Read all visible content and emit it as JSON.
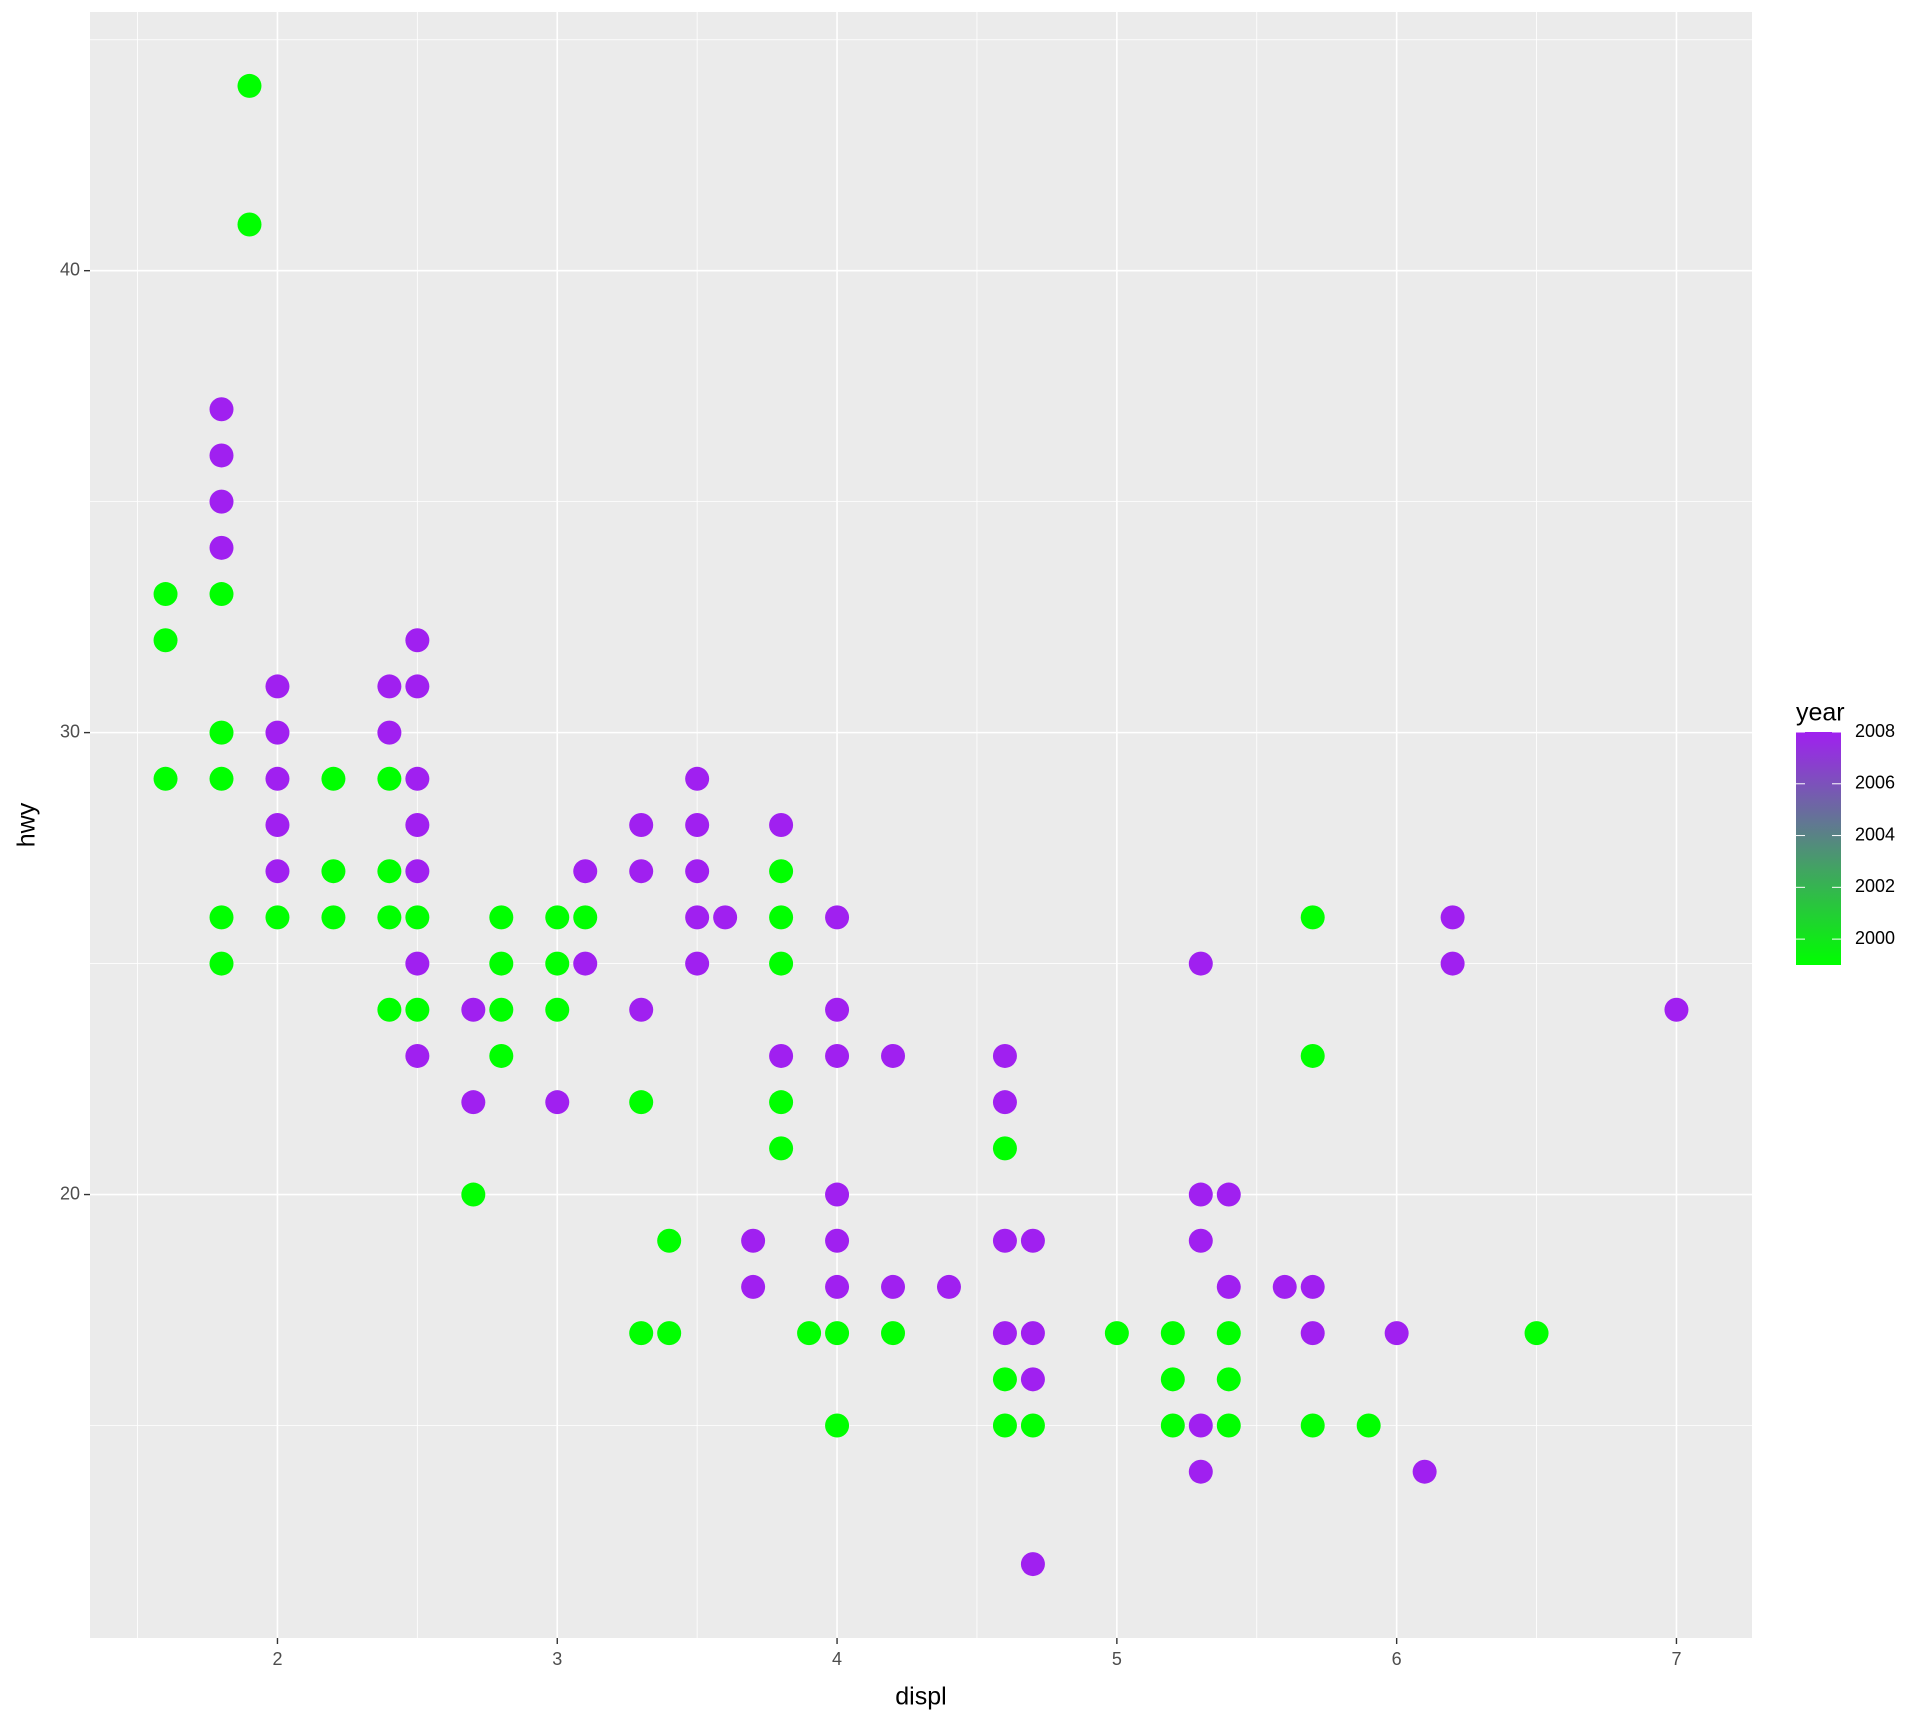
{
  "chart_data": {
    "type": "scatter",
    "x_label": "displ",
    "y_label": "hwy",
    "xlim": [
      1.33,
      7.27
    ],
    "ylim": [
      10.4,
      45.6
    ],
    "xticks": [
      2,
      3,
      4,
      5,
      6,
      7
    ],
    "yticks": [
      20,
      30,
      40
    ],
    "xminor": [
      1.5,
      2.5,
      3.5,
      4.5,
      5.5,
      6.5
    ],
    "yminor": [
      15,
      25,
      35,
      45
    ],
    "grid": true,
    "colorbar": {
      "title": "year",
      "limits": [
        1999,
        2008
      ],
      "ticks": [
        2000,
        2002,
        2004,
        2006,
        2008
      ],
      "low": "#00ff00",
      "high": "#a020f0"
    },
    "x": [
      1.9,
      1.9,
      1.6,
      1.6,
      1.6,
      1.8,
      1.8,
      1.8,
      1.8,
      1.8,
      2.0,
      2.2,
      2.2,
      2.2,
      2.4,
      2.4,
      2.4,
      2.4,
      2.5,
      2.5,
      2.7,
      2.8,
      2.8,
      2.8,
      2.8,
      3.0,
      3.0,
      3.0,
      3.1,
      3.3,
      3.3,
      3.4,
      3.4,
      3.8,
      3.8,
      3.8,
      3.8,
      3.8,
      3.9,
      4.0,
      4.0,
      4.2,
      4.6,
      4.6,
      4.6,
      4.7,
      5.0,
      5.2,
      5.2,
      5.2,
      5.4,
      5.4,
      5.4,
      5.7,
      5.7,
      5.7,
      5.9,
      6.5,
      1.8,
      1.8,
      1.8,
      1.8,
      2.0,
      2.0,
      2.0,
      2.0,
      2.0,
      2.4,
      2.4,
      2.5,
      2.5,
      2.5,
      2.5,
      2.5,
      2.5,
      2.5,
      2.7,
      2.7,
      3.0,
      3.1,
      3.1,
      3.3,
      3.3,
      3.3,
      3.5,
      3.5,
      3.5,
      3.5,
      3.5,
      3.6,
      3.7,
      3.7,
      3.8,
      3.8,
      4.0,
      4.0,
      4.0,
      4.0,
      4.0,
      4.0,
      4.2,
      4.2,
      4.4,
      4.6,
      4.6,
      4.6,
      4.6,
      4.7,
      4.7,
      4.7,
      4.7,
      5.3,
      5.3,
      5.3,
      5.3,
      5.3,
      5.4,
      5.4,
      5.6,
      5.7,
      5.7,
      6.0,
      6.1,
      6.2,
      6.2,
      7.0
    ],
    "y": [
      44,
      41,
      33,
      32,
      29,
      33,
      30,
      29,
      26,
      25,
      26,
      29,
      27,
      26,
      29,
      27,
      26,
      24,
      26,
      24,
      20,
      26,
      25,
      24,
      23,
      26,
      25,
      24,
      26,
      22,
      17,
      19,
      17,
      27,
      26,
      25,
      22,
      21,
      17,
      17,
      15,
      17,
      21,
      16,
      15,
      15,
      17,
      17,
      16,
      15,
      17,
      16,
      15,
      26,
      23,
      15,
      15,
      17,
      37,
      36,
      35,
      34,
      31,
      30,
      29,
      28,
      27,
      31,
      30,
      32,
      31,
      29,
      28,
      27,
      25,
      23,
      24,
      22,
      22,
      27,
      25,
      28,
      27,
      24,
      29,
      28,
      27,
      26,
      25,
      26,
      19,
      18,
      28,
      23,
      26,
      24,
      23,
      20,
      19,
      18,
      23,
      18,
      18,
      23,
      22,
      19,
      17,
      19,
      17,
      16,
      12,
      25,
      20,
      19,
      15,
      14,
      20,
      18,
      18,
      18,
      17,
      17,
      14,
      26,
      25,
      24
    ],
    "color_values": [
      1999,
      1999,
      1999,
      1999,
      1999,
      1999,
      1999,
      1999,
      1999,
      1999,
      1999,
      1999,
      1999,
      1999,
      1999,
      1999,
      1999,
      1999,
      1999,
      1999,
      1999,
      1999,
      1999,
      1999,
      1999,
      1999,
      1999,
      1999,
      1999,
      1999,
      1999,
      1999,
      1999,
      1999,
      1999,
      1999,
      1999,
      1999,
      1999,
      1999,
      1999,
      1999,
      1999,
      1999,
      1999,
      1999,
      1999,
      1999,
      1999,
      1999,
      1999,
      1999,
      1999,
      1999,
      1999,
      1999,
      1999,
      1999,
      2008,
      2008,
      2008,
      2008,
      2008,
      2008,
      2008,
      2008,
      2008,
      2008,
      2008,
      2008,
      2008,
      2008,
      2008,
      2008,
      2008,
      2008,
      2008,
      2008,
      2008,
      2008,
      2008,
      2008,
      2008,
      2008,
      2008,
      2008,
      2008,
      2008,
      2008,
      2008,
      2008,
      2008,
      2008,
      2008,
      2008,
      2008,
      2008,
      2008,
      2008,
      2008,
      2008,
      2008,
      2008,
      2008,
      2008,
      2008,
      2008,
      2008,
      2008,
      2008,
      2008,
      2008,
      2008,
      2008,
      2008,
      2008,
      2008,
      2008,
      2008,
      2008,
      2008,
      2008,
      2008,
      2008,
      2008,
      2008
    ]
  }
}
